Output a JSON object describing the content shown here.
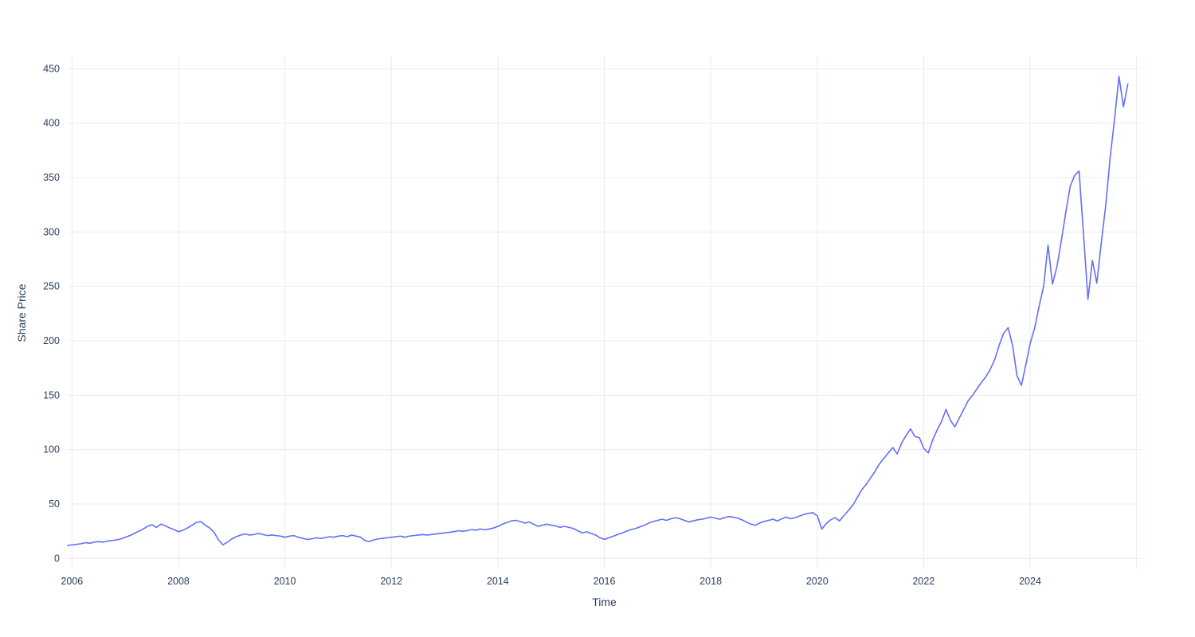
{
  "chart_data": {
    "type": "line",
    "title": "",
    "xlabel": "Time",
    "ylabel": "Share Price",
    "legend": "none",
    "grid": true,
    "x_range": [
      2005.92,
      2026.08
    ],
    "y_range": [
      -10,
      462
    ],
    "x_ticks": [
      2006,
      2008,
      2010,
      2012,
      2014,
      2016,
      2018,
      2020,
      2022,
      2024
    ],
    "x_gridlines": [
      2006,
      2008,
      2010,
      2012,
      2014,
      2016,
      2018,
      2020,
      2022,
      2024,
      2026
    ],
    "y_ticks": [
      0,
      50,
      100,
      150,
      200,
      250,
      300,
      350,
      400,
      450
    ],
    "colors": {
      "line": "#636efa",
      "grid": "#e9ecf2",
      "tick_text": "#2a3f5f",
      "background": "#ffffff"
    },
    "series": [
      {
        "name": "Share Price",
        "x_start": 2005.92,
        "x_step_years": 0.0833333,
        "values": [
          12,
          12.5,
          13,
          13.5,
          14.5,
          14,
          15,
          15.5,
          15,
          16,
          16.5,
          17,
          18,
          19.5,
          21,
          23,
          25,
          27,
          29.5,
          31,
          28.5,
          31.5,
          30,
          28,
          26.5,
          24.5,
          26,
          28,
          30.5,
          33,
          34,
          30.5,
          28,
          24,
          17,
          12.5,
          15,
          18,
          20,
          21.5,
          22.5,
          21.5,
          22,
          23,
          22,
          21,
          21.5,
          21,
          20.5,
          19.5,
          20.5,
          21,
          19.5,
          18.5,
          17.5,
          18,
          19,
          18.5,
          19,
          20,
          19.5,
          20.5,
          21,
          20,
          21.5,
          20.5,
          19.5,
          16.5,
          15.5,
          17,
          18,
          18.5,
          19,
          19.5,
          20,
          20.5,
          19.5,
          20.5,
          21,
          21.5,
          22,
          21.5,
          22,
          22.5,
          23,
          23.5,
          24,
          24.5,
          25.5,
          25,
          25.5,
          26.5,
          26,
          27,
          26.5,
          27,
          28,
          29.5,
          31.5,
          33,
          34.5,
          35,
          34,
          32.5,
          33.5,
          31.5,
          29.5,
          30.5,
          31.5,
          30.5,
          30,
          28.5,
          29.5,
          28.5,
          27.5,
          25.5,
          23.5,
          24.5,
          23,
          21.5,
          19,
          17.5,
          19,
          20.5,
          22,
          23.5,
          25,
          26.5,
          27.5,
          29,
          30.5,
          32.5,
          34,
          35,
          36,
          35,
          36.5,
          37.5,
          36.5,
          35,
          33.5,
          34.5,
          35.5,
          36,
          37,
          38,
          37,
          36,
          37.5,
          38.5,
          38,
          37,
          35.5,
          33.5,
          31.5,
          30.5,
          32.5,
          34,
          35,
          36,
          34.5,
          36.5,
          38,
          36.5,
          37.5,
          39,
          40.5,
          41.5,
          42,
          39,
          27,
          32,
          35.5,
          37.5,
          34.5,
          39.5,
          44,
          49,
          56,
          63,
          68,
          74,
          80,
          87,
          92,
          97,
          102,
          96,
          106,
          113,
          119,
          112,
          111,
          101,
          97,
          109,
          118,
          126,
          137,
          127,
          121,
          129,
          137,
          145,
          150,
          156,
          162,
          167,
          174,
          183,
          196,
          207,
          212,
          196,
          168,
          159,
          178,
          198,
          212,
          232,
          250,
          288,
          252,
          268,
          292,
          318,
          342,
          352,
          356,
          298,
          238,
          274,
          253,
          290,
          324,
          368,
          404,
          443,
          415,
          436
        ]
      }
    ]
  }
}
